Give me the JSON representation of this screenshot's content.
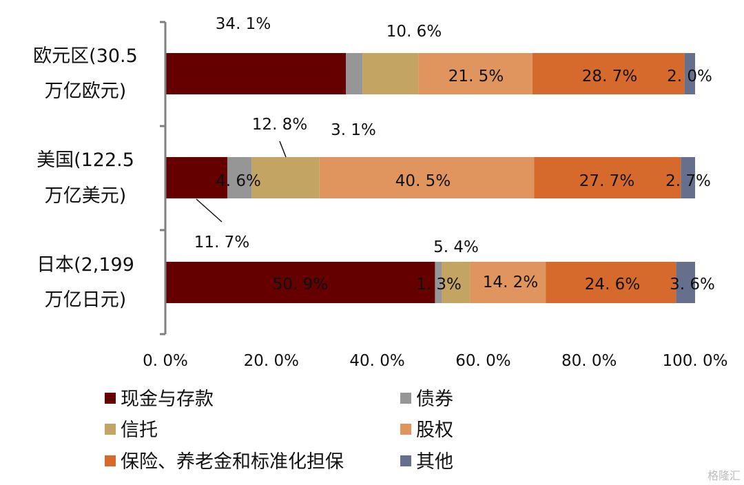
{
  "chart_data": {
    "type": "bar",
    "orientation": "horizontal",
    "stacked": true,
    "categories": [
      [
        "欧元区(30.5",
        "万亿欧元)"
      ],
      [
        "美国(122.5",
        "万亿美元)"
      ],
      [
        "日本(2,199",
        "万亿日元)"
      ]
    ],
    "series": [
      {
        "name": "现金与存款",
        "color": "#650000",
        "values": [
          34.1,
          11.7,
          50.9
        ]
      },
      {
        "name": "债券",
        "color": "#969696",
        "values": [
          3.1,
          4.6,
          1.3
        ]
      },
      {
        "name": "信托",
        "color": "#c4a462",
        "values": [
          10.6,
          12.8,
          5.4
        ]
      },
      {
        "name": "股权",
        "color": "#e0955f",
        "values": [
          21.5,
          40.5,
          14.2
        ]
      },
      {
        "name": "保险、养老金和标准化担保",
        "color": "#d56a2c",
        "values": [
          28.7,
          27.7,
          24.6
        ]
      },
      {
        "name": "其他",
        "color": "#66708d",
        "values": [
          2.0,
          2.7,
          3.6
        ]
      }
    ],
    "data_labels": [
      [
        "34. 1%",
        "",
        "10. 6%",
        "21. 5%",
        "28. 7%",
        "2. 0%"
      ],
      [
        "11. 7%",
        "4. 6%",
        "12. 8%",
        "40. 5%",
        "27. 7%",
        "2. 7%"
      ],
      [
        "50. 9%",
        "1. 3%",
        "5. 4%",
        "14. 2%",
        "24. 6%",
        "3. 6%"
      ]
    ],
    "extra_labels": [
      {
        "category": 0,
        "text": "3. 1%"
      }
    ],
    "x_ticks": [
      "0. 0%",
      "20. 0%",
      "40. 0%",
      "60. 0%",
      "80. 0%",
      "100. 0%"
    ],
    "xlim": [
      0,
      100
    ],
    "grid": false,
    "legend_position": "bottom"
  },
  "watermark": "格隆汇"
}
